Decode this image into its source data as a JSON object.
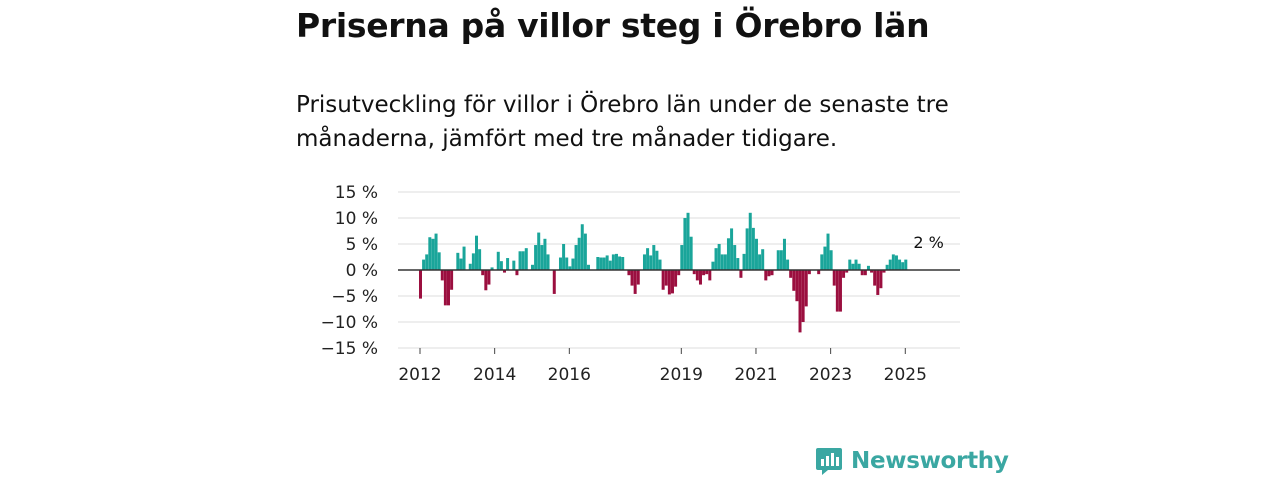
{
  "title": "Priserna på villor steg i Örebro län",
  "subtitle": "Prisutveckling för villor i Örebro län under de senaste tre månaderna, jämfört med tre månader tidigare.",
  "brand": {
    "name": "Newsworthy",
    "icon": "newsworthy-logo-icon"
  },
  "colors": {
    "positive": "#1aa59a",
    "negative": "#9b0f3f",
    "grid": "#dddddd",
    "zero": "#333333",
    "brand": "#3aa7a2"
  },
  "chart_data": {
    "type": "bar",
    "title": "Priserna på villor steg i Örebro län",
    "xlabel": "",
    "ylabel": "",
    "ylim": [
      -15,
      15
    ],
    "y_ticks": [
      15,
      10,
      5,
      0,
      -5,
      -10,
      -15
    ],
    "y_tick_labels": [
      "15 %",
      "10 %",
      "5 %",
      "0 %",
      "−5 %",
      "−10 %",
      "−15 %"
    ],
    "x_ticks": [
      2012,
      2014,
      2016,
      2019,
      2021,
      2023,
      2025
    ],
    "x_tick_labels": [
      "2012",
      "2014",
      "2016",
      "2019",
      "2021",
      "2023",
      "2025"
    ],
    "x_start": 2012,
    "period_months": 1,
    "annotation": {
      "text": "2 %",
      "index": 163
    },
    "values": [
      -5.5,
      2,
      3,
      6.3,
      6,
      7,
      3.4,
      -2,
      -6.8,
      -6.8,
      -3.8,
      0,
      3.3,
      2.2,
      4.5,
      0,
      1.2,
      3.2,
      6.6,
      4,
      -1,
      -3.9,
      -2.8,
      0.5,
      0,
      3.5,
      1.7,
      -0.5,
      2.3,
      0,
      1.8,
      -1,
      3.6,
      3.6,
      4.2,
      0,
      1,
      4.8,
      7.2,
      4.8,
      6,
      3,
      0,
      -4.6,
      0,
      2.4,
      5,
      2.4,
      0.7,
      2.2,
      4.8,
      6.2,
      8.8,
      7,
      1,
      0,
      0,
      2.5,
      2.4,
      2.4,
      2.8,
      1.8,
      3,
      3.1,
      2.6,
      2.5,
      0,
      -1,
      -3,
      -4.6,
      -2.8,
      0,
      3,
      4.2,
      2.8,
      4.8,
      3.7,
      2,
      -3.8,
      -3,
      -4.7,
      -4.5,
      -3.2,
      -1,
      4.8,
      10,
      11,
      6.4,
      -0.8,
      -2,
      -2.8,
      -1,
      -0.8,
      -2,
      1.6,
      4.2,
      5,
      3,
      3,
      6.1,
      8,
      4.8,
      2.3,
      -1.5,
      3.1,
      8,
      11,
      8.1,
      6,
      3,
      4,
      -2,
      -1.2,
      -1,
      0,
      3.8,
      3.8,
      6,
      2,
      -1.5,
      -4,
      -6,
      -12,
      -10,
      -7,
      -0.8,
      0,
      0,
      -0.8,
      3,
      4.5,
      7,
      3.8,
      -3,
      -8,
      -8,
      -1.5,
      -0.5,
      2,
      1.2,
      2,
      1.2,
      -1,
      -1,
      0.8,
      -0.5,
      -3,
      -4.8,
      -3.5,
      -0.5,
      1,
      2,
      3,
      2.8,
      2,
      1.5,
      2
    ]
  }
}
